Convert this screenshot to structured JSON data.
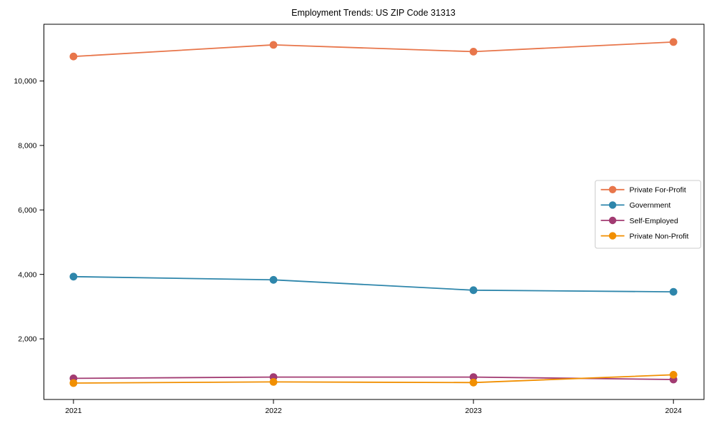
{
  "chart_data": {
    "type": "line",
    "title": "Employment Trends: US ZIP Code 31313",
    "x": [
      2021,
      2022,
      2023,
      2024
    ],
    "x_labels": [
      "2021",
      "2022",
      "2023",
      "2024"
    ],
    "series": [
      {
        "name": "Private For-Profit",
        "color": "#E8764B",
        "values": [
          10760,
          11120,
          10910,
          11210
        ]
      },
      {
        "name": "Government",
        "color": "#2E86AB",
        "values": [
          3930,
          3830,
          3510,
          3460
        ]
      },
      {
        "name": "Self-Employed",
        "color": "#A23B72",
        "values": [
          775,
          815,
          815,
          740
        ]
      },
      {
        "name": "Private Non-Profit",
        "color": "#F18F01",
        "values": [
          630,
          665,
          645,
          885
        ]
      }
    ],
    "xlabel": "",
    "ylabel": "",
    "ylim": [
      120,
      11760
    ],
    "yticks": [
      2000,
      4000,
      6000,
      8000,
      10000
    ],
    "ytick_labels": [
      "2,000",
      "4,000",
      "6,000",
      "8,000",
      "10,000"
    ],
    "grid": false,
    "legend_position": "center right",
    "axis_color": "#000000",
    "legend_border_color": "#cccccc",
    "background_color": "#ffffff"
  }
}
